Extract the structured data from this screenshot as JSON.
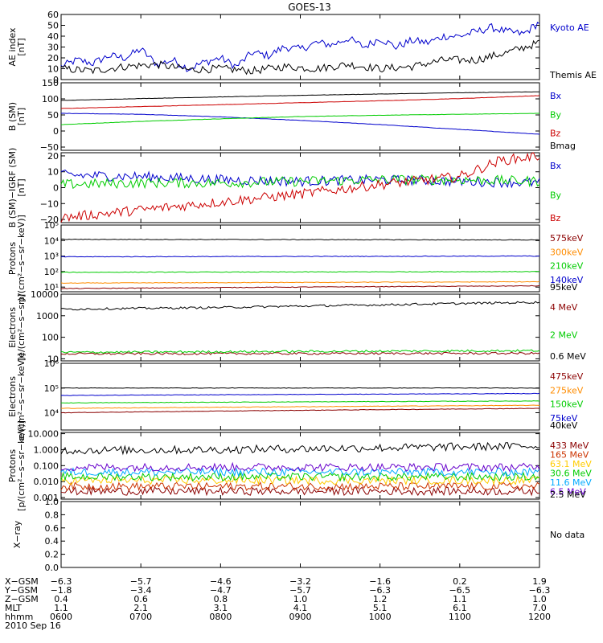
{
  "title": "GOES-13",
  "chart_data": [
    {
      "type": "line",
      "ylabel": [
        "AE index",
        "[nT]"
      ],
      "ylim": [
        0,
        60
      ],
      "scale": "linear",
      "yticks": [
        0,
        10,
        20,
        30,
        40,
        50,
        60
      ],
      "yticklabels": [
        "0",
        "10",
        "20",
        "30",
        "40",
        "50",
        "60"
      ],
      "series": [
        {
          "name": "Kyoto AE",
          "color": "#0000cc",
          "x": [
            6.0,
            6.2,
            6.4,
            6.6,
            6.8,
            7.0,
            7.2,
            7.4,
            7.6,
            7.8,
            8.0,
            8.2,
            8.4,
            8.6,
            8.8,
            9.0,
            9.2,
            9.4,
            9.6,
            9.8,
            10.0,
            10.2,
            10.4,
            10.6,
            10.8,
            11.0,
            11.2,
            11.4,
            11.6,
            11.8,
            12.0
          ],
          "y": [
            12,
            18,
            15,
            22,
            20,
            28,
            14,
            18,
            10,
            16,
            20,
            12,
            25,
            22,
            30,
            28,
            34,
            32,
            38,
            30,
            38,
            30,
            36,
            34,
            40,
            40,
            44,
            48,
            44,
            42,
            53
          ]
        },
        {
          "name": "Themis AE",
          "color": "#000000",
          "x": [
            6.0,
            6.4,
            6.8,
            7.2,
            7.6,
            8.0,
            8.4,
            8.8,
            9.2,
            9.6,
            10.0,
            10.4,
            10.8,
            11.2,
            11.6,
            12.0
          ],
          "y": [
            10,
            8,
            12,
            14,
            9,
            10,
            8,
            12,
            10,
            14,
            10,
            12,
            18,
            18,
            25,
            34
          ]
        }
      ]
    },
    {
      "type": "line",
      "ylabel": [
        "B (SM)",
        "[nT]"
      ],
      "ylim": [
        -60,
        150
      ],
      "scale": "linear",
      "yticks": [
        -50,
        0,
        50,
        100,
        150
      ],
      "yticklabels": [
        "−50",
        "0",
        "50",
        "100",
        "150"
      ],
      "series": [
        {
          "name": "Bx",
          "color": "#0000cc",
          "x": [
            6.0,
            7.0,
            8.0,
            9.0,
            10.0,
            11.0,
            12.0
          ],
          "y": [
            55,
            52,
            44,
            33,
            20,
            5,
            -10
          ]
        },
        {
          "name": "By",
          "color": "#00cc00",
          "x": [
            6.0,
            7.0,
            8.0,
            9.0,
            10.0,
            11.0,
            12.0
          ],
          "y": [
            20,
            30,
            38,
            45,
            49,
            52,
            55
          ]
        },
        {
          "name": "Bz",
          "color": "#cc0000",
          "x": [
            6.0,
            7.0,
            8.0,
            9.0,
            10.0,
            11.0,
            12.0
          ],
          "y": [
            70,
            76,
            82,
            88,
            94,
            101,
            110
          ]
        },
        {
          "name": "Bmag",
          "color": "#000000",
          "x": [
            6.0,
            7.0,
            8.0,
            9.0,
            10.0,
            11.0,
            12.0
          ],
          "y": [
            95,
            101,
            106,
            111,
            115,
            119,
            122
          ]
        }
      ]
    },
    {
      "type": "line",
      "ylabel": [
        "B (SM)−IGRF (SM)",
        "[nT]"
      ],
      "ylim": [
        -22,
        22
      ],
      "scale": "linear",
      "yticks": [
        -20,
        -10,
        0,
        10,
        20
      ],
      "yticklabels": [
        "−20",
        "−10",
        "0",
        "10",
        "20"
      ],
      "series": [
        {
          "name": "Bx",
          "color": "#0000cc",
          "x": [
            6.0,
            7.0,
            8.0,
            9.0,
            10.0,
            11.0,
            12.0
          ],
          "y": [
            8,
            7,
            5,
            4,
            5,
            4,
            3
          ]
        },
        {
          "name": "By",
          "color": "#00cc00",
          "x": [
            6.0,
            7.0,
            8.0,
            9.0,
            10.0,
            11.0,
            12.0
          ],
          "y": [
            2,
            3,
            3,
            4,
            5,
            5,
            4
          ]
        },
        {
          "name": "Bz",
          "color": "#cc0000",
          "x": [
            6.0,
            7.0,
            8.0,
            9.0,
            10.0,
            11.0,
            11.5,
            12.0
          ],
          "y": [
            -19,
            -14,
            -9,
            -4,
            2,
            7,
            17,
            20
          ]
        }
      ]
    },
    {
      "type": "line",
      "ylabel": [
        "Protons",
        "p/(cm²−s−sr−keV)]"
      ],
      "ylim": [
        5,
        100000
      ],
      "scale": "log",
      "yticks": [
        10,
        100,
        1000,
        10000,
        100000
      ],
      "yticklabels": [
        "10¹",
        "10²",
        "10³",
        "10⁴",
        "10⁵"
      ],
      "series": [
        {
          "name": "575keV",
          "color": "#8b0000",
          "x": [
            6.0,
            12.0
          ],
          "y": [
            8,
            12
          ]
        },
        {
          "name": "300keV",
          "color": "#ff8c00",
          "x": [
            6.0,
            12.0
          ],
          "y": [
            18,
            22
          ]
        },
        {
          "name": "210keV",
          "color": "#00cc00",
          "x": [
            6.0,
            12.0
          ],
          "y": [
            90,
            100
          ]
        },
        {
          "name": "140keV",
          "color": "#0000cc",
          "x": [
            6.0,
            12.0
          ],
          "y": [
            900,
            1000
          ]
        },
        {
          "name": "95keV",
          "color": "#000000",
          "x": [
            6.0,
            12.0
          ],
          "y": [
            12000,
            11000
          ]
        }
      ]
    },
    {
      "type": "line",
      "ylabel": [
        "Electrons",
        "[e/(cm²−s−sr)]"
      ],
      "ylim": [
        8,
        10000
      ],
      "scale": "log",
      "yticks": [
        10,
        100,
        1000,
        10000
      ],
      "yticklabels": [
        "10",
        "100",
        "1000",
        "10000"
      ],
      "series": [
        {
          "name": "4 MeV",
          "color": "#8b0000",
          "x": [
            6.0,
            12.0
          ],
          "y": [
            17,
            18
          ]
        },
        {
          "name": "2 MeV",
          "color": "#00cc00",
          "x": [
            6.0,
            12.0
          ],
          "y": [
            20,
            24
          ]
        },
        {
          "name": "0.6 MeV",
          "color": "#000000",
          "x": [
            6.0,
            8.0,
            10.0,
            12.0
          ],
          "y": [
            2000,
            2400,
            3200,
            4200
          ]
        }
      ]
    },
    {
      "type": "line",
      "ylabel": [
        "Electrons",
        "e/(cm²−s−sr−keV)]"
      ],
      "ylim": [
        2000,
        1000000
      ],
      "scale": "log",
      "yticks": [
        10000,
        100000,
        1000000
      ],
      "yticklabels": [
        "10⁴",
        "10⁵",
        "10⁶"
      ],
      "series": [
        {
          "name": "475keV",
          "color": "#8b0000",
          "x": [
            6.0,
            12.0
          ],
          "y": [
            10000,
            15000
          ]
        },
        {
          "name": "275keV",
          "color": "#ff8c00",
          "x": [
            6.0,
            12.0
          ],
          "y": [
            15000,
            20000
          ]
        },
        {
          "name": "150keV",
          "color": "#00cc00",
          "x": [
            6.0,
            12.0
          ],
          "y": [
            25000,
            30000
          ]
        },
        {
          "name": "75keV",
          "color": "#0000cc",
          "x": [
            6.0,
            12.0
          ],
          "y": [
            50000,
            60000
          ]
        },
        {
          "name": "40keV",
          "color": "#000000",
          "x": [
            6.0,
            12.0
          ],
          "y": [
            100000,
            100000
          ]
        }
      ]
    },
    {
      "type": "line",
      "ylabel": [
        "Protons",
        "[p/(cm²−s−sr−keV)]"
      ],
      "ylim": [
        0.0008,
        12
      ],
      "scale": "log",
      "yticks": [
        0.001,
        0.01,
        0.1,
        1,
        10
      ],
      "yticklabels": [
        "0.001",
        "0.010",
        "0.100",
        "1.000",
        "10.000"
      ],
      "series": [
        {
          "name": "433 MeV",
          "color": "#8b0000",
          "x": [
            6.0,
            12.0
          ],
          "y": [
            0.0025,
            0.0025
          ]
        },
        {
          "name": "165 MeV",
          "color": "#cc3300",
          "x": [
            6.0,
            12.0
          ],
          "y": [
            0.005,
            0.005
          ]
        },
        {
          "name": "63.1 MeV",
          "color": "#ffcc00",
          "x": [
            6.0,
            12.0
          ],
          "y": [
            0.012,
            0.012
          ]
        },
        {
          "name": "30.6 MeV",
          "color": "#00cc00",
          "x": [
            6.0,
            12.0
          ],
          "y": [
            0.02,
            0.02
          ]
        },
        {
          "name": "11.6 MeV",
          "color": "#00aaff",
          "x": [
            6.0,
            12.0
          ],
          "y": [
            0.04,
            0.04
          ]
        },
        {
          "name": "6.5 MeV",
          "color": "#6600cc",
          "x": [
            6.0,
            12.0
          ],
          "y": [
            0.08,
            0.08
          ]
        },
        {
          "name": "2.5 MeV",
          "color": "#000000",
          "x": [
            6.0,
            8.0,
            10.0,
            12.0
          ],
          "y": [
            0.9,
            1.0,
            1.3,
            1.7
          ]
        }
      ]
    },
    {
      "type": "line",
      "ylabel": [
        "X−ray"
      ],
      "ylim": [
        0,
        1.0
      ],
      "scale": "linear",
      "yticks": [
        0,
        0.2,
        0.4,
        0.6,
        0.8,
        1.0
      ],
      "yticklabels": [
        "0.0",
        "0.2",
        "0.4",
        "0.6",
        "0.8",
        "1.0"
      ],
      "series": [],
      "note": "No data"
    }
  ],
  "xaxis": {
    "range": [
      6,
      12
    ],
    "ticks": [
      6,
      7,
      8,
      9,
      10,
      11,
      12
    ],
    "rows": [
      {
        "label": "X−GSM",
        "values": [
          "−6.3",
          "−5.7",
          "−4.6",
          "−3.2",
          "−1.6",
          "0.2",
          "1.9"
        ]
      },
      {
        "label": "Y−GSM",
        "values": [
          "−1.8",
          "−3.4",
          "−4.7",
          "−5.7",
          "−6.3",
          "−6.5",
          "−6.3"
        ]
      },
      {
        "label": "Z−GSM",
        "values": [
          "0.4",
          "0.6",
          "0.8",
          "1.0",
          "1.2",
          "1.1",
          "1.0"
        ]
      },
      {
        "label": "MLT",
        "values": [
          "1.1",
          "2.1",
          "3.1",
          "4.1",
          "5.1",
          "6.1",
          "7.0"
        ]
      },
      {
        "label": "hhmm",
        "values": [
          "0600",
          "0700",
          "0800",
          "0900",
          "1000",
          "1100",
          "1200"
        ]
      }
    ],
    "date": "2010 Sep 16"
  }
}
